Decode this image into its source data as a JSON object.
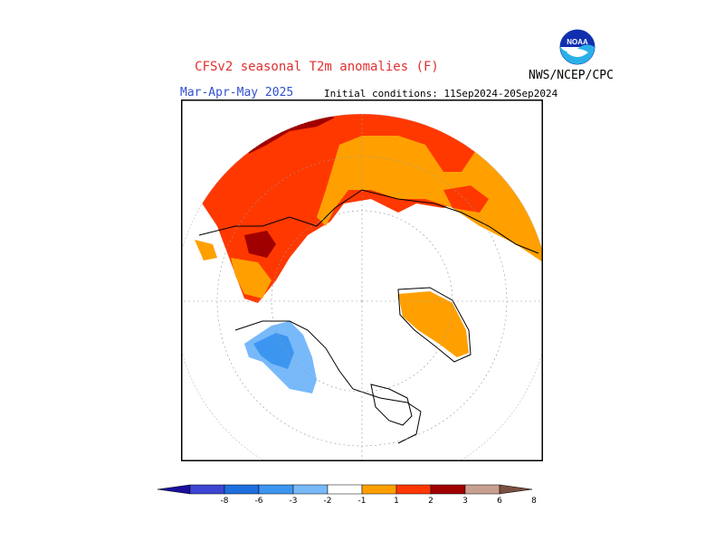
{
  "header": {
    "title": "CFSv2 seasonal T2m anomalies (F)",
    "season": "Mar-Apr-May 2025",
    "initial_conditions": "Initial conditions: 11Sep2024-20Sep2024",
    "agency": "NWS/NCEP/CPC",
    "logo_text": "NOAA"
  },
  "map": {
    "projection": "north polar stereographic",
    "regions": [
      {
        "name": "northern-eurasia",
        "anomaly_class": "+2 to +3",
        "color": "#ff3800"
      },
      {
        "name": "central-siberia",
        "anomaly_class": "+1 to +2",
        "color": "#ffa000"
      },
      {
        "name": "russian-arctic-coast",
        "anomaly_class": "+3 to +6",
        "color": "#a00000"
      },
      {
        "name": "greenland",
        "anomaly_class": "+1 to +2",
        "color": "#ffa000"
      },
      {
        "name": "alaska-yukon",
        "anomaly_class": "-1 to -3",
        "color": "#4a9cf0"
      }
    ]
  },
  "colorbar": {
    "labels": [
      "-8",
      "-6",
      "-3",
      "-2",
      "-1",
      "1",
      "2",
      "3",
      "6",
      "8"
    ],
    "colors": [
      "#1a0f9e",
      "#3c46d2",
      "#1e6ede",
      "#3c96f0",
      "#78b9fa",
      "#ffffff",
      "#ffa000",
      "#ff3800",
      "#a00000",
      "#c8a090",
      "#7a5040"
    ]
  }
}
